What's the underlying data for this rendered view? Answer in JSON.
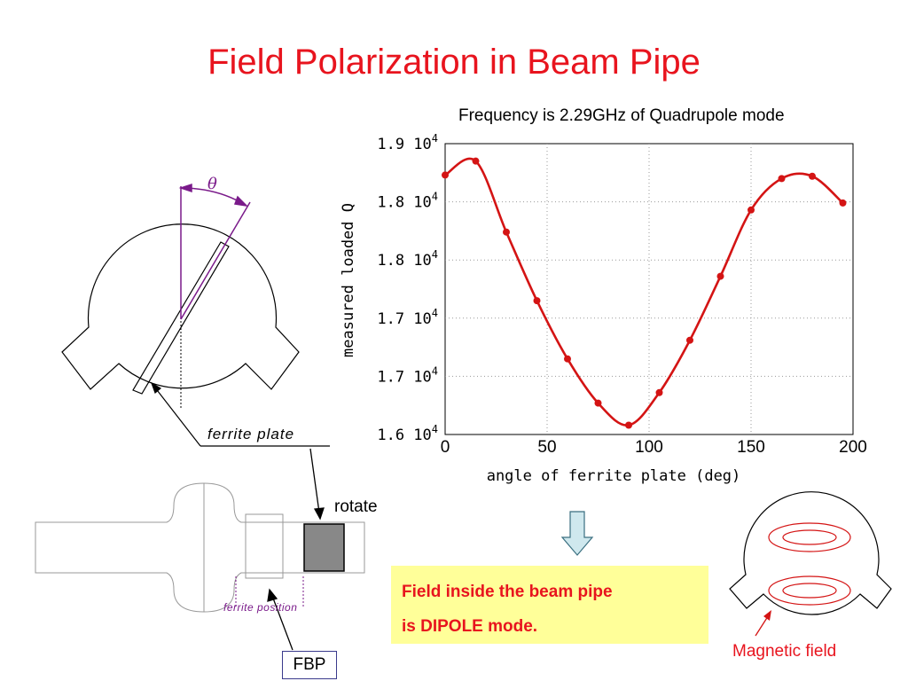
{
  "title": "Field Polarization in Beam Pipe",
  "chart_heading": "Frequency is 2.29GHz of Quadrupole mode",
  "diagram": {
    "theta_symbol": "θ",
    "ferrite_plate_label": "ferrite plate",
    "rotate_label": "rotate",
    "ferrite_position_label": "ferrite position",
    "fbp_label": "FBP",
    "magnetic_field_label": "Magnetic field"
  },
  "result": {
    "line1": "Field inside the beam pipe",
    "line2": "is DIPOLE mode."
  },
  "colors": {
    "title": "#e8141e",
    "series": "#d41414",
    "theta": "#7a1a8a",
    "result_bg": "#ffff99"
  },
  "chart_data": {
    "type": "scatter",
    "xlabel": "angle of ferrite plate (deg)",
    "ylabel": "measured loaded Q",
    "xlim": [
      0,
      200
    ],
    "x_ticks": [
      0,
      50,
      100,
      150,
      200
    ],
    "y_ticks": [
      16000,
      16500,
      17000,
      17500,
      18000,
      18500
    ],
    "y_tick_mantissas": [
      "1.6",
      "1.7",
      "1.7",
      "1.8",
      "1.8",
      "1.9"
    ],
    "y_tick_exponent": "4",
    "ylim": [
      16000,
      18500
    ],
    "grid": true,
    "series": [
      {
        "x": [
          0,
          15,
          30,
          45,
          60,
          75,
          90,
          105,
          120,
          135,
          150,
          165,
          180,
          195
        ],
        "y": [
          18230,
          18350,
          17740,
          17150,
          16650,
          16270,
          16080,
          16360,
          16810,
          17360,
          17930,
          18200,
          18220,
          17990
        ],
        "fit_curve": true
      }
    ]
  }
}
